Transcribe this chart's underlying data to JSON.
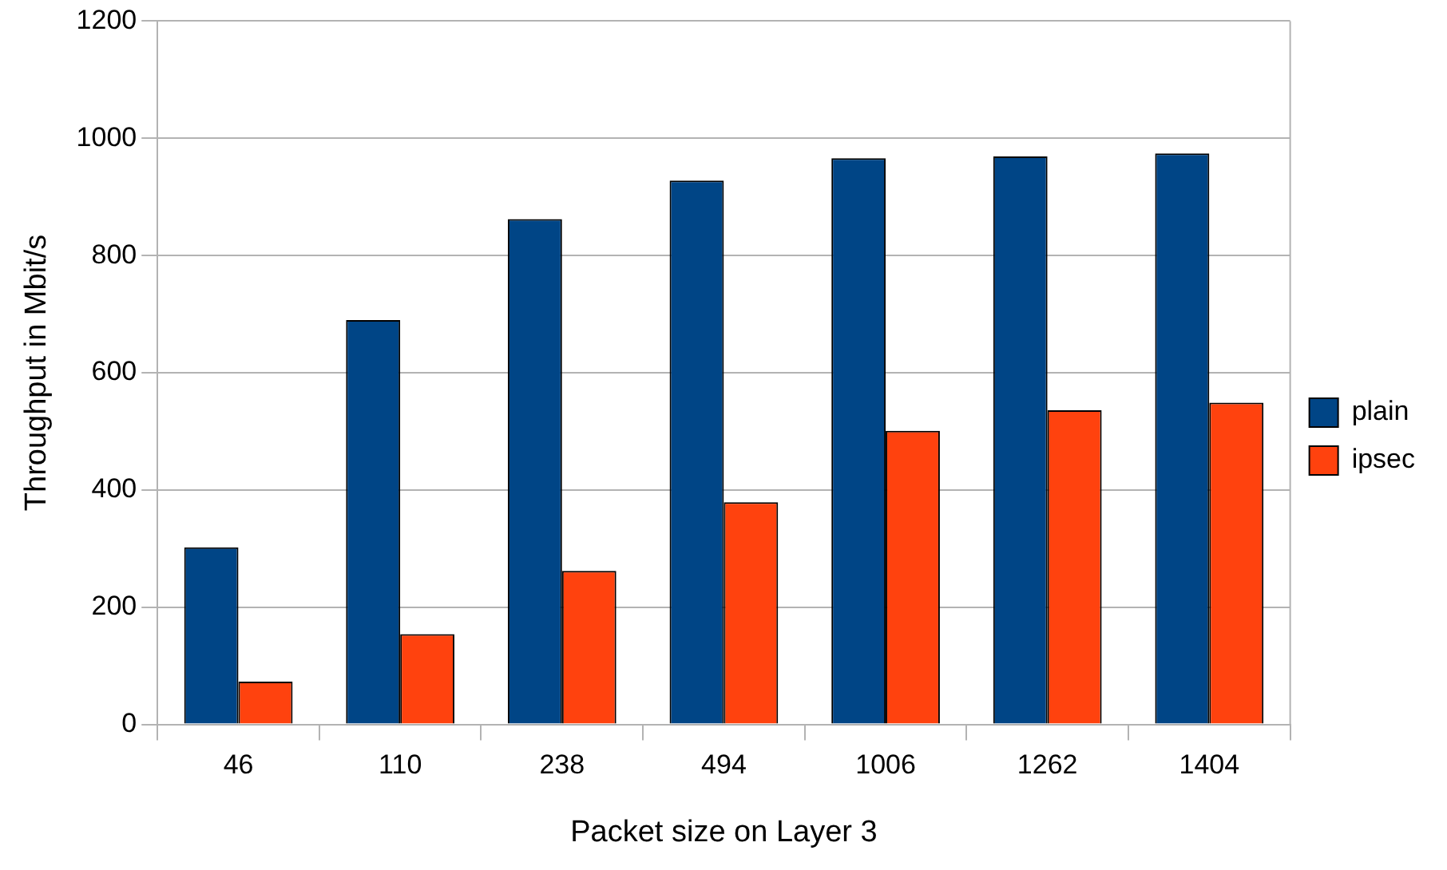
{
  "chart_data": {
    "type": "bar",
    "xlabel": "Packet size on Layer 3",
    "ylabel": "Throughput in Mbit/s",
    "categories": [
      "46",
      "110",
      "238",
      "494",
      "1006",
      "1262",
      "1404"
    ],
    "series": [
      {
        "name": "plain",
        "color": "#004586",
        "values": [
          302,
          690,
          862,
          928,
          966,
          969,
          974
        ]
      },
      {
        "name": "ipsec",
        "color": "#ff420e",
        "values": [
          73,
          154,
          262,
          379,
          501,
          536,
          549
        ]
      }
    ],
    "ylim": [
      0,
      1200
    ],
    "yticks": [
      0,
      200,
      400,
      600,
      800,
      1000,
      1200
    ],
    "grid": "y",
    "legend": "right"
  }
}
